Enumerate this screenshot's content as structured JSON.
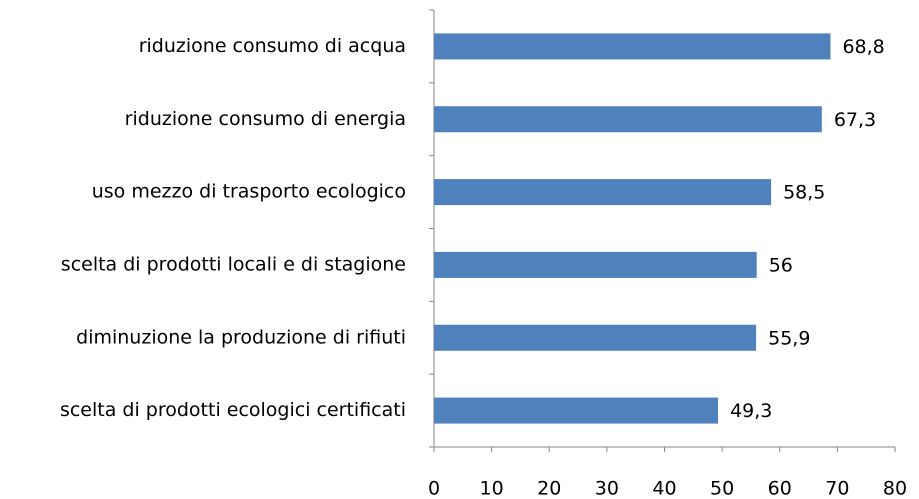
{
  "chart_data": {
    "type": "bar",
    "orientation": "horizontal",
    "categories": [
      "riduzione consumo di acqua",
      "riduzione consumo di energia",
      "uso mezzo di trasporto ecologico",
      "scelta di prodotti locali e di stagione",
      "diminuzione la produzione di rifiuti",
      "scelta di prodotti ecologici certificati"
    ],
    "values": [
      68.8,
      67.3,
      58.5,
      56,
      55.9,
      49.3
    ],
    "value_labels": [
      "68,8",
      "67,3",
      "58,5",
      "56",
      "55,9",
      "49,3"
    ],
    "color": "#4f81bd",
    "xlim": [
      0,
      80
    ],
    "xticks": [
      0,
      10,
      20,
      30,
      40,
      50,
      60,
      70,
      80
    ],
    "grid": false
  }
}
